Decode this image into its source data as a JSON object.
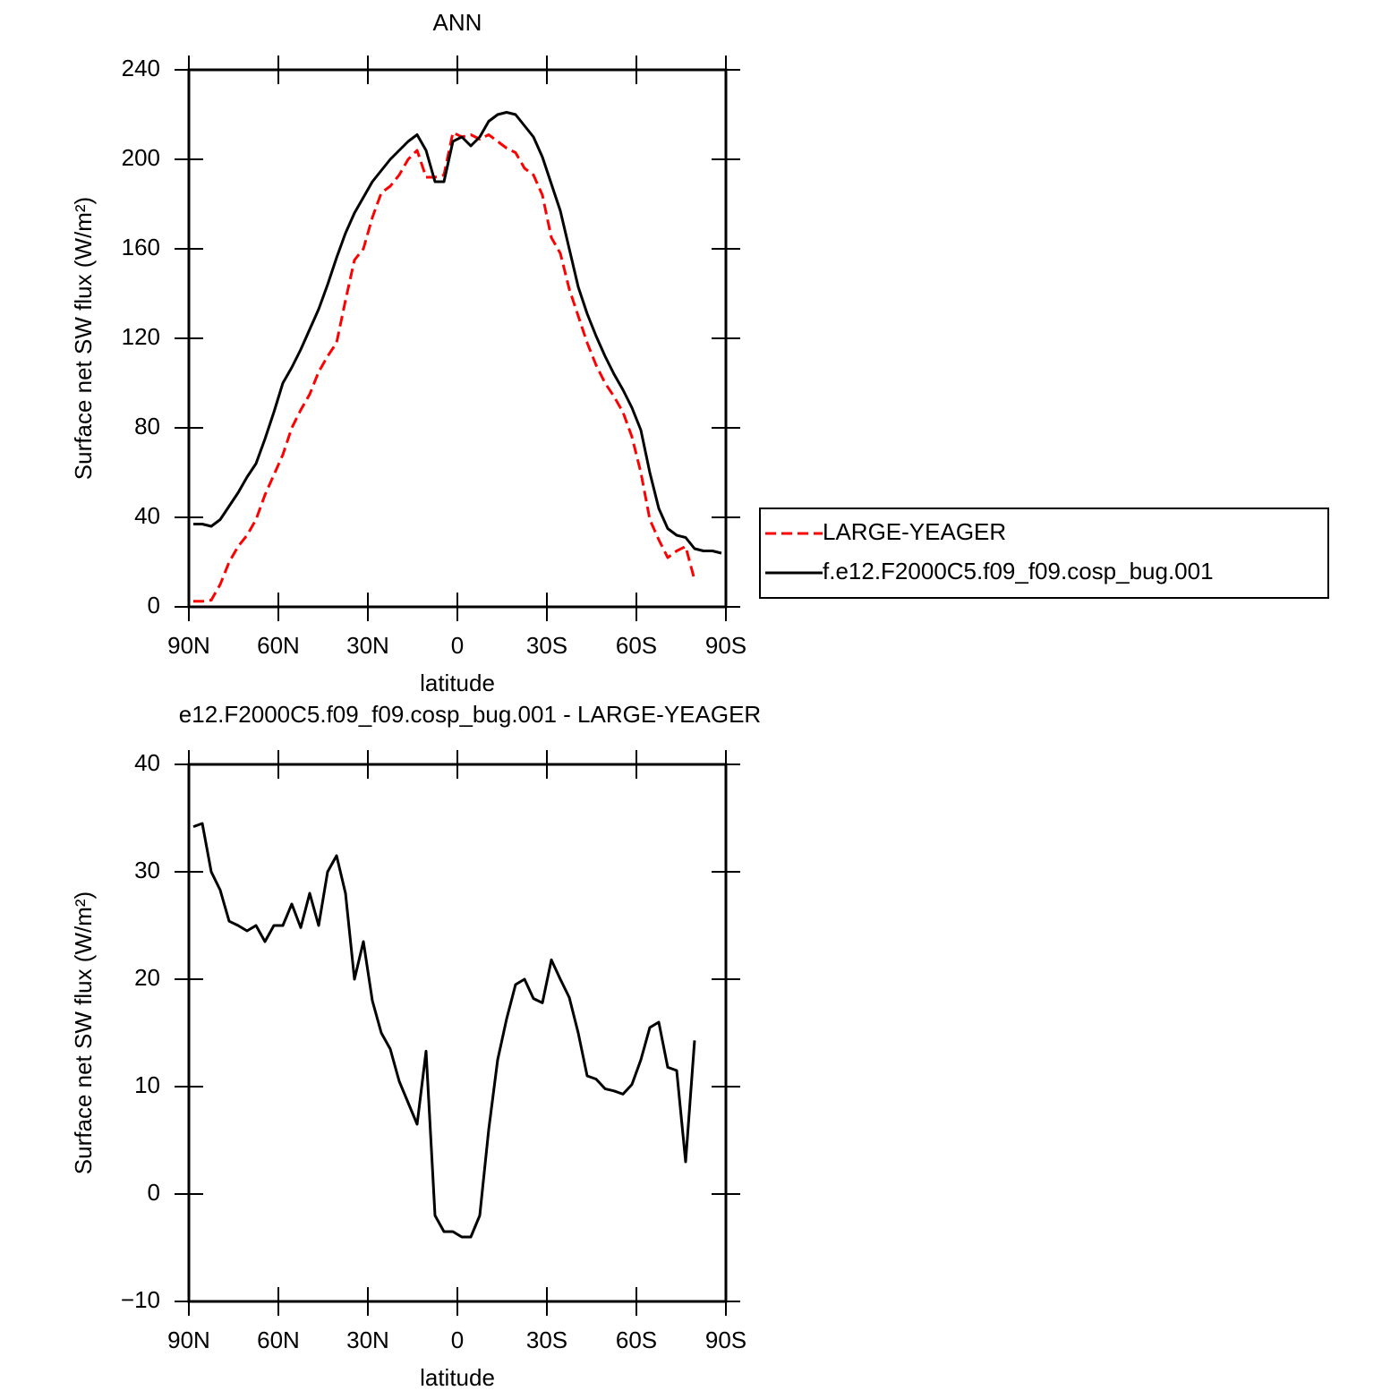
{
  "chart_data": [
    {
      "type": "line",
      "title": "ANN",
      "xlabel": "latitude",
      "ylabel": "Surface net SW flux (W/m²)",
      "x": [
        88.5,
        85.5,
        82.5,
        79.5,
        76.5,
        73.5,
        70.5,
        67.5,
        64.5,
        61.5,
        58.5,
        55.5,
        52.5,
        49.5,
        46.5,
        43.5,
        40.5,
        37.5,
        34.5,
        31.5,
        28.5,
        25.5,
        22.5,
        19.5,
        16.5,
        13.5,
        10.5,
        7.5,
        4.5,
        1.5,
        -1.5,
        -4.5,
        -7.5,
        -10.5,
        -13.5,
        -16.5,
        -19.5,
        -22.5,
        -25.5,
        -28.5,
        -31.5,
        -34.5,
        -37.5,
        -40.5,
        -43.5,
        -46.5,
        -49.5,
        -52.5,
        -55.5,
        -58.5,
        -61.5,
        -64.5,
        -67.5,
        -70.5,
        -73.5,
        -76.5,
        -79.5,
        -82.5,
        -85.5,
        -88.5
      ],
      "xlim": [
        90,
        -90
      ],
      "xticks": [
        {
          "value": 90,
          "label": "90N"
        },
        {
          "value": 60,
          "label": "60N"
        },
        {
          "value": 30,
          "label": "30N"
        },
        0,
        {
          "value": -30,
          "label": "30S"
        },
        {
          "value": -60,
          "label": "60S"
        },
        {
          "value": -90,
          "label": "90S"
        }
      ],
      "ylim": [
        0,
        240
      ],
      "yticks": [
        0,
        40,
        80,
        120,
        160,
        200,
        240
      ],
      "legend": "right",
      "series": [
        {
          "name": "LARGE-YEAGER",
          "color": "#ff0000",
          "linestyle": "dashed",
          "values": [
            2.5,
            2.5,
            3,
            10,
            20,
            27,
            32,
            39,
            50,
            59,
            68,
            80,
            88,
            95,
            105,
            112,
            118,
            137,
            155,
            160,
            174,
            185,
            188,
            193,
            200,
            204,
            192,
            192,
            193,
            212,
            210,
            211,
            209,
            211,
            208,
            205,
            203,
            196,
            193,
            184,
            165,
            158,
            142,
            130,
            118,
            108,
            100,
            94,
            87,
            76,
            60,
            39,
            30,
            22,
            25,
            27,
            12,
            null,
            null,
            null
          ]
        },
        {
          "name": "f.e12.F2000C5.f09_f09.cosp_bug.001",
          "color": "#000000",
          "linestyle": "solid",
          "values": [
            37,
            37,
            36,
            39,
            45,
            51,
            58,
            64,
            75,
            87,
            100,
            107,
            115,
            124,
            133,
            144,
            156,
            167,
            176,
            183,
            190,
            195,
            200,
            204,
            208,
            211,
            204,
            190,
            190,
            208,
            210,
            206,
            210,
            217,
            220,
            221,
            220,
            215,
            210,
            201,
            189,
            177,
            160,
            143,
            131,
            121,
            112,
            104,
            97,
            89,
            79,
            60,
            44,
            35,
            32,
            31,
            26,
            25,
            25,
            24
          ]
        }
      ]
    },
    {
      "type": "line",
      "title": "e12.F2000C5.f09_f09.cosp_bug.001 - LARGE-YEAGER",
      "xlabel": "latitude",
      "ylabel": "Surface net SW flux (W/m²)",
      "x": [
        88.5,
        85.5,
        82.5,
        79.5,
        76.5,
        73.5,
        70.5,
        67.5,
        64.5,
        61.5,
        58.5,
        55.5,
        52.5,
        49.5,
        46.5,
        43.5,
        40.5,
        37.5,
        34.5,
        31.5,
        28.5,
        25.5,
        22.5,
        19.5,
        16.5,
        13.5,
        10.5,
        7.5,
        4.5,
        1.5,
        -1.5,
        -4.5,
        -7.5,
        -10.5,
        -13.5,
        -16.5,
        -19.5,
        -22.5,
        -25.5,
        -28.5,
        -31.5,
        -34.5,
        -37.5,
        -40.5,
        -43.5,
        -46.5,
        -49.5,
        -52.5,
        -55.5,
        -58.5,
        -61.5,
        -64.5,
        -67.5,
        -70.5,
        -73.5,
        -76.5,
        -79.5,
        -82.5,
        -85.5,
        -88.5
      ],
      "xlim": [
        90,
        -90
      ],
      "xticks": [
        {
          "value": 90,
          "label": "90N"
        },
        {
          "value": 60,
          "label": "60N"
        },
        {
          "value": 30,
          "label": "30N"
        },
        0,
        {
          "value": -30,
          "label": "30S"
        },
        {
          "value": -60,
          "label": "60S"
        },
        {
          "value": -90,
          "label": "90S"
        }
      ],
      "ylim": [
        -10,
        40
      ],
      "yticks": [
        {
          "value": -10,
          "label": "−10"
        },
        0,
        10,
        20,
        30,
        40
      ],
      "series": [
        {
          "color": "#000000",
          "linestyle": "solid",
          "values": [
            34.2,
            34.5,
            30,
            28.3,
            25.4,
            25,
            24.5,
            25,
            23.5,
            25,
            25,
            27,
            24.8,
            28,
            25,
            30,
            31.5,
            28,
            20,
            23.5,
            18,
            15,
            13.5,
            10.5,
            8.5,
            6.5,
            13.3,
            -2,
            -3.5,
            -3.5,
            -4,
            -4,
            -2,
            6,
            12.5,
            16.3,
            19.5,
            20,
            18.2,
            17.8,
            21.8,
            20,
            18.3,
            15,
            11,
            10.7,
            9.8,
            9.6,
            9.3,
            10.2,
            12.5,
            15.5,
            16,
            11.8,
            11.5,
            3,
            14.3,
            null,
            null,
            null
          ]
        }
      ]
    }
  ]
}
